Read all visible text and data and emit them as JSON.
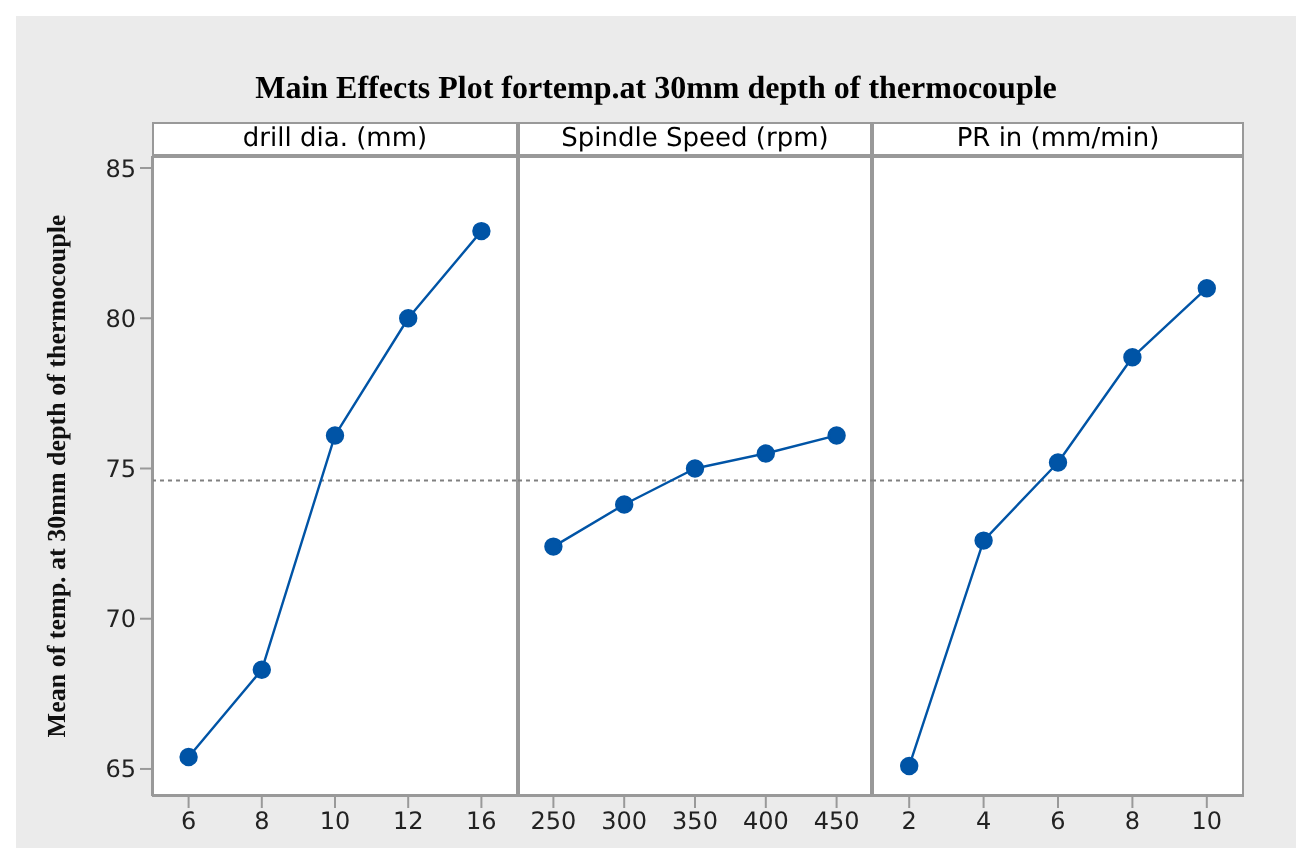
{
  "chart_data": [
    {
      "type": "line",
      "title": "Main Effects Plot fortemp.at 30mm depth of thermocouple",
      "xlabel": "drill dia. (mm)",
      "ylabel": "Mean of temp. at 30mm depth of thermocouple",
      "categories": [
        "6",
        "8",
        "10",
        "12",
        "16"
      ],
      "series": [
        {
          "color": "#0054a6",
          "values": [
            65.4,
            68.3,
            76.1,
            80.0,
            82.9
          ]
        }
      ],
      "ylim": [
        64.1,
        85.4
      ],
      "yticks": [
        65,
        70,
        75,
        80,
        85
      ],
      "marker": "circle",
      "ref_lines": [
        {
          "axis": "y",
          "value": 74.6,
          "color": "#808080",
          "line_style": "dotted"
        }
      ]
    },
    {
      "type": "line",
      "xlabel": "Spindle Speed (rpm)",
      "categories": [
        "250",
        "300",
        "350",
        "400",
        "450"
      ],
      "series": [
        {
          "color": "#0054a6",
          "values": [
            72.4,
            73.8,
            75.0,
            75.5,
            76.1
          ]
        }
      ],
      "ylim": [
        64.1,
        85.4
      ],
      "yticks": [
        65,
        70,
        75,
        80,
        85
      ],
      "marker": "circle",
      "tick_labels": "x",
      "ref_lines": [
        {
          "axis": "y",
          "value": 74.6,
          "color": "#808080",
          "line_style": "dotted"
        }
      ]
    },
    {
      "type": "line",
      "xlabel": "PR in (mm/min)",
      "categories": [
        "2",
        "4",
        "6",
        "8",
        "10"
      ],
      "series": [
        {
          "color": "#0054a6",
          "values": [
            65.1,
            72.6,
            75.2,
            78.7,
            81.0
          ]
        }
      ],
      "ylim": [
        64.1,
        85.4
      ],
      "yticks": [
        65,
        70,
        75,
        80,
        85
      ],
      "marker": "circle",
      "tick_labels": "x",
      "ref_lines": [
        {
          "axis": "y",
          "value": 74.6,
          "color": "#808080",
          "line_style": "dotted"
        }
      ]
    }
  ]
}
